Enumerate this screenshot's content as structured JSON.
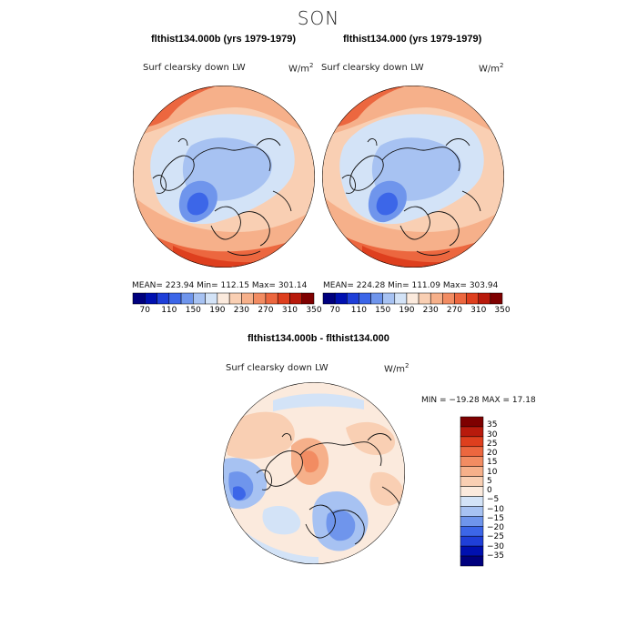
{
  "page": {
    "season_title": "SON"
  },
  "panels": [
    {
      "title": "flthist134.000b (yrs 1979-1979)",
      "variable": "Surf clearsky down LW",
      "units_base": "W/m",
      "units_exp": "2",
      "stats": "MEAN= 223.94   Min= 112.15   Max= 301.14"
    },
    {
      "title": "flthist134.000 (yrs 1979-1979)",
      "variable": "Surf clearsky down LW",
      "units_base": "W/m",
      "units_exp": "2",
      "stats": "MEAN= 224.28   Min= 111.09   Max= 303.94"
    }
  ],
  "diff_panel": {
    "title": "flthist134.000b - flthist134.000",
    "variable": "Surf clearsky down LW",
    "units_base": "W/m",
    "units_exp": "2",
    "stats": "MIN = −19.28  MAX =   17.18"
  },
  "colors": {
    "abs_scale": [
      "#00007e",
      "#0010b0",
      "#1f3fd8",
      "#3c66e8",
      "#6f95ec",
      "#a7c2f2",
      "#d3e3f7",
      "#fbeadd",
      "#f9cfb3",
      "#f6b08a",
      "#f28c62",
      "#ec673f",
      "#de3f1e",
      "#b81a0c",
      "#7e0000"
    ],
    "diff_scale": [
      "#00007e",
      "#0010b0",
      "#1f3fd8",
      "#3c66e8",
      "#6f95ec",
      "#a7c2f2",
      "#d3e3f7",
      "#fbeadd",
      "#f9cfb3",
      "#f6b08a",
      "#f28c62",
      "#ec673f",
      "#de3f1e",
      "#b81a0c",
      "#7e0000"
    ]
  },
  "chart_data": [
    {
      "type": "heatmap",
      "projection": "north polar stereographic",
      "title": "flthist134.000b (yrs 1979-1979)",
      "variable": "Surf clearsky down LW",
      "units": "W/m2",
      "mean": 223.94,
      "min": 112.15,
      "max": 301.14,
      "colorbar_ticks": [
        "70",
        "110",
        "150",
        "190",
        "230",
        "270",
        "310",
        "350"
      ]
    },
    {
      "type": "heatmap",
      "projection": "north polar stereographic",
      "title": "flthist134.000 (yrs 1979-1979)",
      "variable": "Surf clearsky down LW",
      "units": "W/m2",
      "mean": 224.28,
      "min": 111.09,
      "max": 303.94,
      "colorbar_ticks": [
        "70",
        "110",
        "150",
        "190",
        "230",
        "270",
        "310",
        "350"
      ]
    },
    {
      "type": "heatmap",
      "projection": "north polar stereographic",
      "title": "flthist134.000b - flthist134.000",
      "variable": "Surf clearsky down LW",
      "units": "W/m2",
      "min": -19.28,
      "max": 17.18,
      "colorbar_ticks": [
        "35",
        "30",
        "25",
        "20",
        "15",
        "10",
        "5",
        "0",
        "−5",
        "−10",
        "−15",
        "−20",
        "−25",
        "−30",
        "−35"
      ]
    }
  ]
}
